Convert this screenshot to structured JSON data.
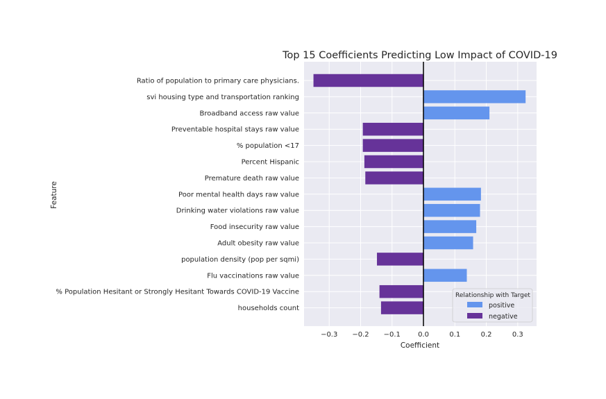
{
  "chart_data": {
    "type": "bar",
    "orientation": "horizontal",
    "title": "Top 15 Coefficients Predicting Low Impact of COVID-19",
    "xlabel": "Coefficient",
    "ylabel": "Feature",
    "xlim": [
      -0.38,
      0.36
    ],
    "xticks": [
      -0.3,
      -0.2,
      -0.1,
      0.0,
      0.1,
      0.2,
      0.3
    ],
    "xtick_labels": [
      "−0.3",
      "−0.2",
      "−0.1",
      "0.0",
      "0.1",
      "0.2",
      "0.3"
    ],
    "grid": true,
    "legend_position": "bottom-right",
    "legend": {
      "title": "Relationship with Target",
      "entries": [
        {
          "label": "positive",
          "color": "#6495ed"
        },
        {
          "label": "negative",
          "color": "#663399"
        }
      ]
    },
    "categories": [
      "Ratio of population to primary care physicians.",
      "svi housing type and transportation ranking",
      "Broadband access raw value",
      "Preventable hospital stays raw value",
      "% population <17",
      "Percent Hispanic",
      "Premature death raw value",
      "Poor mental health days raw value",
      "Drinking water violations raw value",
      "Food insecurity raw value",
      "Adult obesity raw value",
      "population density (pop per sqmi)",
      "Flu vaccinations raw value",
      "% Population Hesitant or Strongly Hesitant Towards COVID-19 Vaccine",
      "households count"
    ],
    "values": [
      -0.35,
      0.325,
      0.21,
      -0.193,
      -0.193,
      -0.188,
      -0.185,
      0.183,
      0.18,
      0.168,
      0.158,
      -0.148,
      0.138,
      -0.14,
      -0.135
    ],
    "relationship": [
      "negative",
      "positive",
      "positive",
      "negative",
      "negative",
      "negative",
      "negative",
      "positive",
      "positive",
      "positive",
      "positive",
      "negative",
      "positive",
      "negative",
      "negative"
    ]
  },
  "colors": {
    "positive": "#6495ed",
    "negative": "#663399",
    "plot_background": "#eaeaf2",
    "grid": "#ffffff",
    "zero_line": "#000000"
  }
}
